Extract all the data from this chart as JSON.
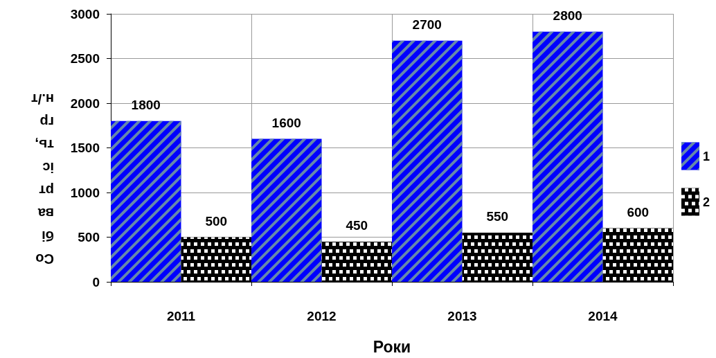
{
  "chart_data": {
    "type": "bar",
    "xlabel": "Роки",
    "ylabel": "Собівартість, грн./т",
    "categories": [
      "2011",
      "2012",
      "2013",
      "2014"
    ],
    "series": [
      {
        "name": "1",
        "color": "#0000ff",
        "values": [
          1800,
          1600,
          2700,
          2800
        ]
      },
      {
        "name": "2",
        "color": "#000000",
        "values": [
          500,
          450,
          550,
          600
        ]
      }
    ],
    "ylim": [
      0,
      3000
    ],
    "yticks": [
      0,
      500,
      1000,
      1500,
      2000,
      2500,
      3000
    ],
    "grid": true,
    "legend": "right",
    "data_labels": true
  }
}
